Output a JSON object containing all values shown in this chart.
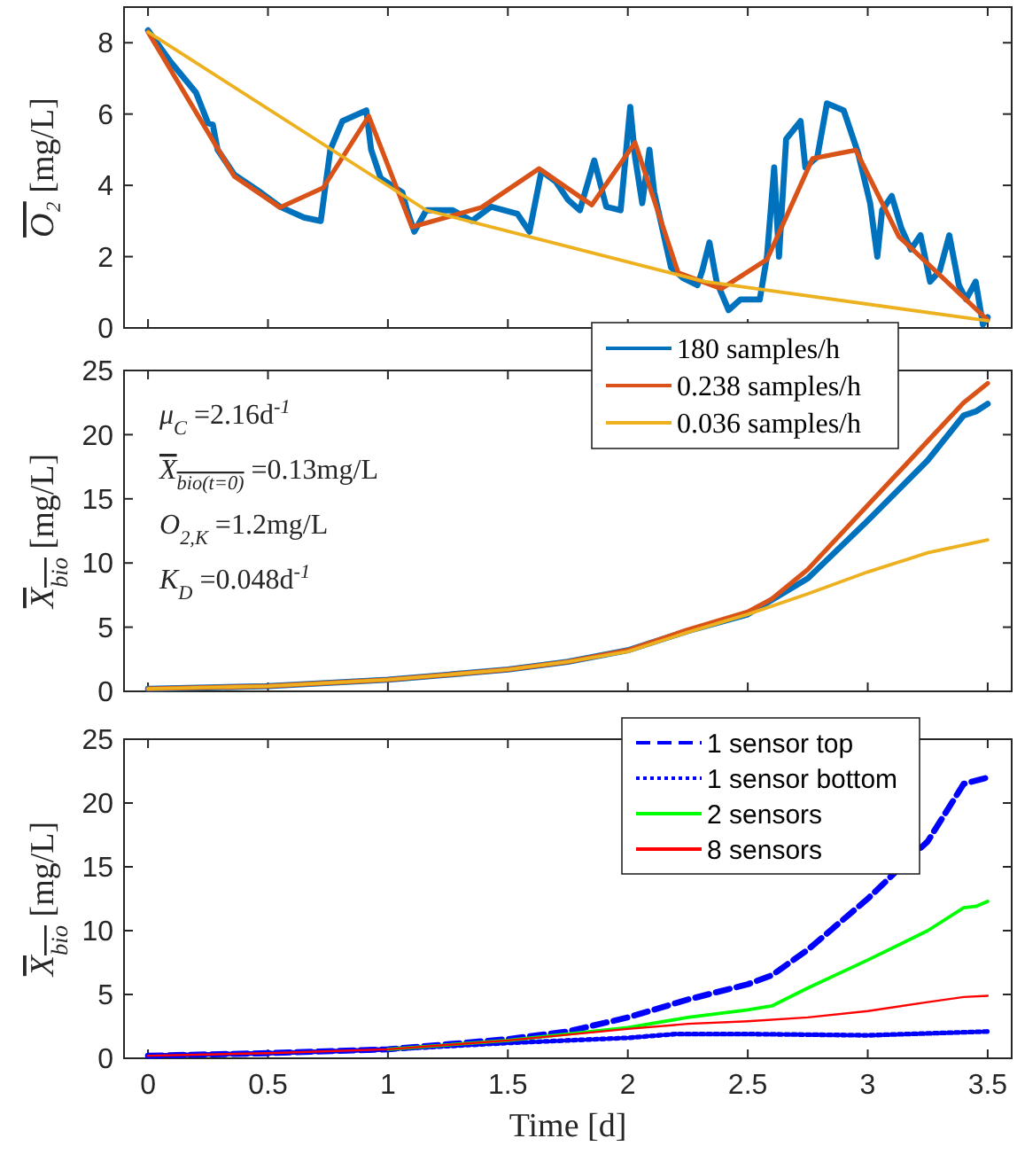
{
  "chart_data": [
    {
      "type": "line",
      "ylabel": "O₂ [mg/L]",
      "xlim": [
        -0.1,
        3.6
      ],
      "ylim": [
        0,
        9
      ],
      "xticks": [
        {
          "value": 0,
          "label": null
        },
        {
          "value": 0.5,
          "label": null
        },
        {
          "value": 1,
          "label": null
        },
        {
          "value": 1.5,
          "label": null
        },
        {
          "value": 2,
          "label": null
        },
        {
          "value": 2.5,
          "label": null
        },
        {
          "value": 3,
          "label": null
        },
        {
          "value": 3.5,
          "label": null
        }
      ],
      "yticks": [
        0,
        2,
        4,
        6,
        8
      ],
      "tick_labels": "y",
      "legend": false,
      "series": [
        {
          "color": "#0072bd",
          "x": [
            0,
            0.09,
            0.2,
            0.25,
            0.27,
            0.29,
            0.36,
            0.47,
            0.55,
            0.65,
            0.72,
            0.76,
            0.81,
            0.91,
            0.93,
            0.97,
            1.06,
            1.08,
            1.11,
            1.16,
            1.27,
            1.35,
            1.43,
            1.54,
            1.59,
            1.64,
            1.7,
            1.75,
            1.8,
            1.86,
            1.91,
            1.97,
            2.01,
            2.03,
            2.06,
            2.09,
            2.11,
            2.18,
            2.23,
            2.29,
            2.31,
            2.34,
            2.37,
            2.42,
            2.47,
            2.55,
            2.58,
            2.61,
            2.63,
            2.66,
            2.72,
            2.74,
            2.79,
            2.83,
            2.9,
            2.96,
            3.01,
            3.04,
            3.06,
            3.1,
            3.14,
            3.18,
            3.22,
            3.26,
            3.3,
            3.34,
            3.38,
            3.41,
            3.45,
            3.48,
            3.5
          ],
          "values": [
            8.35,
            7.5,
            6.6,
            5.75,
            5.7,
            5.0,
            4.3,
            3.8,
            3.4,
            3.1,
            3.0,
            5.0,
            5.8,
            6.1,
            5.0,
            4.2,
            3.8,
            3.3,
            2.7,
            3.3,
            3.3,
            3.0,
            3.4,
            3.2,
            2.7,
            4.4,
            4.1,
            3.6,
            3.3,
            4.7,
            3.4,
            3.3,
            6.2,
            4.8,
            3.5,
            5.0,
            3.8,
            1.7,
            1.4,
            1.2,
            1.6,
            2.4,
            1.3,
            0.5,
            0.8,
            0.8,
            2.0,
            4.5,
            2.0,
            5.3,
            5.8,
            4.5,
            4.8,
            6.3,
            6.1,
            4.9,
            3.5,
            2.0,
            3.3,
            3.7,
            2.8,
            2.2,
            2.6,
            1.3,
            1.6,
            2.6,
            1.2,
            0.8,
            1.3,
            0.1,
            0.3
          ]
        },
        {
          "color": "#d95319",
          "x": [
            0,
            0.36,
            0.55,
            0.73,
            0.92,
            1.1,
            1.39,
            1.63,
            1.85,
            2.03,
            2.21,
            2.39,
            2.58,
            2.77,
            2.95,
            3.13,
            3.5
          ],
          "values": [
            8.3,
            4.25,
            3.38,
            3.93,
            5.94,
            2.83,
            3.38,
            4.47,
            3.45,
            5.2,
            1.55,
            1.1,
            1.92,
            4.75,
            4.99,
            2.56,
            0.22
          ]
        },
        {
          "color": "#edb120",
          "x": [
            0,
            1.16,
            2.32,
            3.5
          ],
          "values": [
            8.3,
            3.3,
            1.3,
            0.2
          ]
        }
      ]
    },
    {
      "type": "line",
      "ylabel": "X$_{bio}$ [mg/L]",
      "xlim": [
        -0.1,
        3.6
      ],
      "ylim": [
        0,
        25
      ],
      "xticks": [
        {
          "value": 0,
          "label": null
        },
        {
          "value": 0.5,
          "label": null
        },
        {
          "value": 1,
          "label": null
        },
        {
          "value": 1.5,
          "label": null
        },
        {
          "value": 2,
          "label": null
        },
        {
          "value": 2.5,
          "label": null
        },
        {
          "value": 3,
          "label": null
        },
        {
          "value": 3.5,
          "label": null
        }
      ],
      "yticks": [
        0,
        5,
        10,
        15,
        20,
        25
      ],
      "tick_labels": "y",
      "legend": "top right",
      "annotations": [
        "μ$_{C}$ =2.16d$^{-1}$",
        "X$_{bio(t=0)}$ =0.13mg/L",
        "O$_{2,K}$ =1.2mg/L",
        "K$_{D}$ =0.048d$^{-1}$"
      ],
      "series": [
        {
          "name": "180 samples/h",
          "color": "#0072bd",
          "x": [
            0,
            0.5,
            1,
            1.5,
            1.75,
            2,
            2.25,
            2.5,
            2.75,
            3,
            3.25,
            3.4,
            3.45,
            3.5
          ],
          "values": [
            0.2,
            0.4,
            0.9,
            1.7,
            2.3,
            3.2,
            4.7,
            6.0,
            8.8,
            13.3,
            18,
            21.5,
            21.8,
            22.4
          ]
        },
        {
          "name": "0.238 samples/h",
          "color": "#d95319",
          "x": [
            0,
            0.5,
            1,
            1.5,
            1.75,
            2,
            2.25,
            2.5,
            2.6,
            2.75,
            3,
            3.25,
            3.4,
            3.5
          ],
          "values": [
            0.2,
            0.4,
            0.9,
            1.7,
            2.3,
            3.2,
            4.8,
            6.2,
            7.2,
            9.5,
            14.5,
            19.5,
            22.5,
            24.0
          ]
        },
        {
          "name": "0.036 samples/h",
          "color": "#edb120",
          "x": [
            0,
            0.5,
            1,
            1.5,
            1.75,
            2,
            2.25,
            2.5,
            2.75,
            3,
            3.25,
            3.5
          ],
          "values": [
            0.2,
            0.4,
            0.9,
            1.7,
            2.3,
            3.1,
            4.6,
            6.0,
            7.6,
            9.3,
            10.8,
            11.8
          ]
        }
      ]
    },
    {
      "type": "line",
      "ylabel": "X$_{bio}$ [mg/L]",
      "xlabel": "Time [d]",
      "xlim": [
        -0.1,
        3.6
      ],
      "ylim": [
        0,
        25
      ],
      "xticks": [
        0,
        0.5,
        1,
        1.5,
        2,
        2.5,
        3,
        3.5
      ],
      "yticks": [
        0,
        5,
        10,
        15,
        20,
        25
      ],
      "legend": "top right",
      "series": [
        {
          "name": "1 sensor top",
          "color": "#0000ff",
          "line_style": "dashed",
          "x": [
            0,
            0.5,
            1,
            1.5,
            1.75,
            2,
            2.25,
            2.5,
            2.6,
            2.75,
            3,
            3.25,
            3.4,
            3.5
          ],
          "values": [
            0.2,
            0.4,
            0.7,
            1.5,
            2.1,
            3.2,
            4.6,
            5.8,
            6.5,
            8.5,
            12.5,
            17,
            21.5,
            22
          ]
        },
        {
          "name": "1 sensor bottom",
          "color": "#0000ff",
          "line_style": "dotted",
          "x": [
            0,
            0.5,
            1,
            1.5,
            2,
            2.2,
            2.5,
            3,
            3.5
          ],
          "values": [
            0.2,
            0.4,
            0.7,
            1.2,
            1.6,
            1.9,
            1.9,
            1.8,
            2.1
          ]
        },
        {
          "name": "2 sensors",
          "color": "#00ff00",
          "x": [
            1,
            1.5,
            2,
            2.25,
            2.5,
            2.6,
            2.75,
            3,
            3.25,
            3.4,
            3.45,
            3.5
          ],
          "values": [
            0.7,
            1.4,
            2.4,
            3.2,
            3.8,
            4.1,
            5.5,
            7.7,
            10,
            11.8,
            11.9,
            12.3
          ]
        },
        {
          "name": "8 sensors",
          "color": "#ff0000",
          "x": [
            0,
            0.5,
            1,
            1.5,
            2,
            2.25,
            2.5,
            2.75,
            3,
            3.25,
            3.4,
            3.5
          ],
          "values": [
            0.2,
            0.4,
            0.7,
            1.4,
            2.3,
            2.7,
            2.9,
            3.2,
            3.7,
            4.4,
            4.8,
            4.9
          ]
        }
      ]
    }
  ]
}
